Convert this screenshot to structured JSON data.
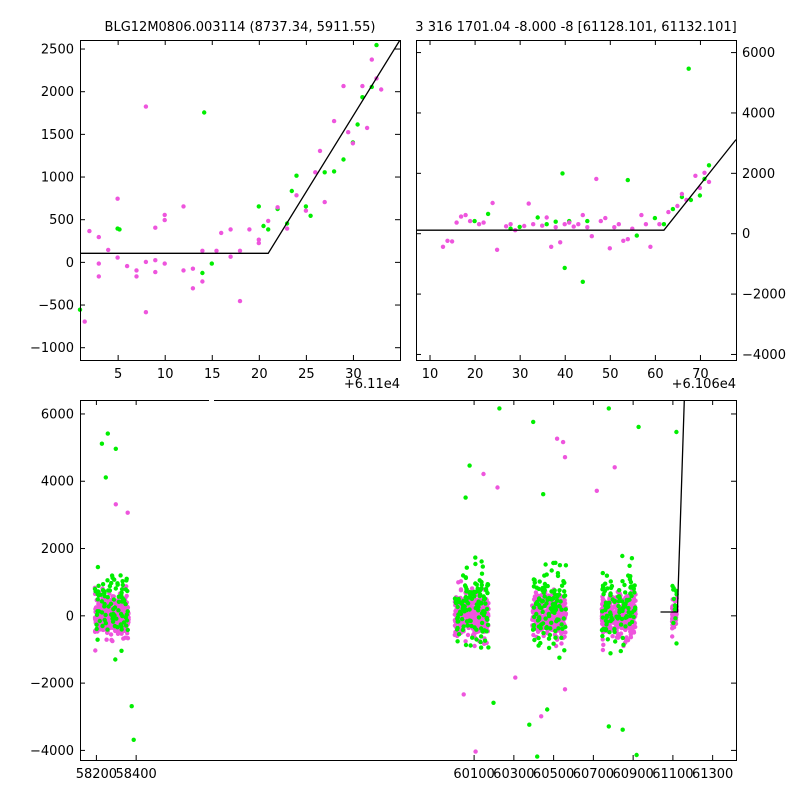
{
  "colors": {
    "green": "#00ee00",
    "magenta": "#ee55dd",
    "line": "#000000"
  },
  "chart_data": [
    {
      "id": "top-left",
      "type": "scatter",
      "title": "BLG12M0806.003114 (8737.34, 5911.55)",
      "offset_label": "+6.11e4",
      "xlim": [
        1,
        35
      ],
      "ylim": [
        -1150,
        2600
      ],
      "xticks": [
        5,
        10,
        15,
        20,
        25,
        30
      ],
      "yticks": [
        -1000,
        -500,
        0,
        500,
        1000,
        1500,
        2000,
        2500
      ],
      "model_line": [
        [
          1,
          100
        ],
        [
          21,
          100
        ],
        [
          35,
          2600
        ]
      ],
      "series": [
        {
          "name": "green",
          "points": [
            [
              1,
              -560
            ],
            [
              5,
              390
            ],
            [
              5.2,
              380
            ],
            [
              14.2,
              1750
            ],
            [
              14,
              -130
            ],
            [
              15,
              -20
            ],
            [
              20,
              650
            ],
            [
              20.5,
              420
            ],
            [
              21,
              380
            ],
            [
              22,
              620
            ],
            [
              23,
              450
            ],
            [
              23.5,
              830
            ],
            [
              24,
              1010
            ],
            [
              25,
              650
            ],
            [
              25.5,
              540
            ],
            [
              27,
              1050
            ],
            [
              28,
              1060
            ],
            [
              29,
              1200
            ],
            [
              30,
              1400
            ],
            [
              30.5,
              1610
            ],
            [
              31,
              1930
            ],
            [
              32.5,
              2540
            ],
            [
              32,
              2050
            ]
          ]
        },
        {
          "name": "magenta",
          "points": [
            [
              1.5,
              -700
            ],
            [
              2,
              360
            ],
            [
              3,
              -20
            ],
            [
              3,
              -170
            ],
            [
              3,
              290
            ],
            [
              4,
              140
            ],
            [
              5,
              50
            ],
            [
              5,
              740
            ],
            [
              6,
              -50
            ],
            [
              7,
              -100
            ],
            [
              7,
              -170
            ],
            [
              8,
              0
            ],
            [
              8,
              1820
            ],
            [
              8,
              -590
            ],
            [
              9,
              400
            ],
            [
              9,
              20
            ],
            [
              9,
              -120
            ],
            [
              10,
              -20
            ],
            [
              10,
              550
            ],
            [
              10,
              490
            ],
            [
              12,
              650
            ],
            [
              12,
              -100
            ],
            [
              13,
              -80
            ],
            [
              13,
              -310
            ],
            [
              14,
              130
            ],
            [
              14,
              -230
            ],
            [
              15.5,
              130
            ],
            [
              16,
              340
            ],
            [
              17,
              60
            ],
            [
              17,
              380
            ],
            [
              18,
              130
            ],
            [
              18,
              -460
            ],
            [
              19,
              380
            ],
            [
              20,
              220
            ],
            [
              20,
              260
            ],
            [
              21,
              480
            ],
            [
              22,
              640
            ],
            [
              23,
              390
            ],
            [
              24,
              780
            ],
            [
              25,
              600
            ],
            [
              26,
              1050
            ],
            [
              26.5,
              1300
            ],
            [
              27,
              700
            ],
            [
              28,
              1650
            ],
            [
              29,
              2060
            ],
            [
              29.5,
              1520
            ],
            [
              30,
              1390
            ],
            [
              31,
              2060
            ],
            [
              31.5,
              1570
            ],
            [
              32,
              2370
            ],
            [
              32.5,
              2150
            ],
            [
              33,
              2020
            ]
          ]
        }
      ]
    },
    {
      "id": "top-right",
      "type": "scatter",
      "title": "3 316 1701.04 -8.000 -8 [61128.101, 61132.101]",
      "offset_label": "+6.106e4",
      "xlim": [
        7,
        78
      ],
      "ylim": [
        -4200,
        6400
      ],
      "xticks": [
        10,
        20,
        30,
        40,
        50,
        60,
        70
      ],
      "yticks": [
        -4000,
        -2000,
        0,
        2000,
        4000,
        6000
      ],
      "model_line": [
        [
          7,
          100
        ],
        [
          62,
          100
        ],
        [
          78,
          3100
        ]
      ],
      "series": [
        {
          "name": "green",
          "points": [
            [
              20,
              400
            ],
            [
              23,
              640
            ],
            [
              28,
              150
            ],
            [
              30,
              210
            ],
            [
              34,
              520
            ],
            [
              36,
              300
            ],
            [
              38,
              380
            ],
            [
              39.5,
              1980
            ],
            [
              40,
              -1150
            ],
            [
              41,
              400
            ],
            [
              44,
              -1610
            ],
            [
              45,
              400
            ],
            [
              54,
              1760
            ],
            [
              56,
              -80
            ],
            [
              60,
              500
            ],
            [
              62,
              300
            ],
            [
              64,
              800
            ],
            [
              66,
              1200
            ],
            [
              67.5,
              5450
            ],
            [
              68,
              1100
            ],
            [
              70,
              1250
            ],
            [
              71,
              1800
            ],
            [
              72,
              2250
            ]
          ]
        },
        {
          "name": "magenta",
          "points": [
            [
              13,
              -450
            ],
            [
              14,
              -250
            ],
            [
              15,
              -270
            ],
            [
              16,
              350
            ],
            [
              17,
              550
            ],
            [
              18,
              600
            ],
            [
              19,
              400
            ],
            [
              21,
              300
            ],
            [
              22,
              350
            ],
            [
              24,
              1000
            ],
            [
              25,
              -550
            ],
            [
              27,
              230
            ],
            [
              28,
              300
            ],
            [
              29,
              100
            ],
            [
              31,
              240
            ],
            [
              32,
              980
            ],
            [
              33,
              300
            ],
            [
              35,
              250
            ],
            [
              36,
              520
            ],
            [
              37,
              -450
            ],
            [
              38,
              200
            ],
            [
              39,
              -300
            ],
            [
              40,
              300
            ],
            [
              41,
              350
            ],
            [
              42,
              220
            ],
            [
              43,
              300
            ],
            [
              44,
              600
            ],
            [
              45,
              200
            ],
            [
              46,
              -100
            ],
            [
              47,
              1800
            ],
            [
              48,
              400
            ],
            [
              49,
              500
            ],
            [
              50,
              -500
            ],
            [
              51,
              200
            ],
            [
              52,
              300
            ],
            [
              53,
              -250
            ],
            [
              54,
              -200
            ],
            [
              55,
              150
            ],
            [
              57,
              600
            ],
            [
              58,
              300
            ],
            [
              59,
              -450
            ],
            [
              61,
              300
            ],
            [
              63,
              700
            ],
            [
              65,
              900
            ],
            [
              66,
              1300
            ],
            [
              67,
              1100
            ],
            [
              69,
              1900
            ],
            [
              70,
              1500
            ],
            [
              71,
              2000
            ],
            [
              72,
              1700
            ]
          ]
        }
      ]
    },
    {
      "id": "bottom",
      "type": "scatter",
      "title": "",
      "xlim": [
        58120,
        61420
      ],
      "ylim": [
        -4300,
        6400
      ],
      "xticks": [
        58200,
        58400,
        60100,
        60300,
        60500,
        60700,
        60900,
        61100,
        61300
      ],
      "yticks": [
        -4000,
        -2000,
        0,
        2000,
        4000,
        6000
      ],
      "model_line": [
        [
          61040,
          100
        ],
        [
          61125,
          100
        ],
        [
          61160,
          6400
        ]
      ],
      "clusters": [
        {
          "x_center": 58280,
          "x_spread": 85,
          "magenta_n": 300,
          "green_n": 90,
          "sd": 300
        },
        {
          "x_center": 60090,
          "x_spread": 85,
          "magenta_n": 340,
          "green_n": 120,
          "sd": 320
        },
        {
          "x_center": 60480,
          "x_spread": 85,
          "magenta_n": 330,
          "green_n": 120,
          "sd": 320
        },
        {
          "x_center": 60830,
          "x_spread": 85,
          "magenta_n": 330,
          "green_n": 110,
          "sd": 310
        },
        {
          "x_center": 61110,
          "x_spread": 12,
          "magenta_n": 45,
          "green_n": 14,
          "sd": 260
        }
      ],
      "outliers": {
        "green": [
          [
            58260,
            5400
          ],
          [
            58300,
            4950
          ],
          [
            58250,
            4100
          ],
          [
            58230,
            5100
          ],
          [
            58380,
            -2700
          ],
          [
            58390,
            -3700
          ],
          [
            60080,
            4450
          ],
          [
            60230,
            6150
          ],
          [
            60400,
            5750
          ],
          [
            60420,
            -4200
          ],
          [
            60470,
            -2800
          ],
          [
            60380,
            -3250
          ],
          [
            60780,
            6150
          ],
          [
            60780,
            -3300
          ],
          [
            60850,
            -3400
          ],
          [
            60920,
            -4150
          ],
          [
            60930,
            5600
          ],
          [
            61120,
            5450
          ],
          [
            60060,
            3500
          ],
          [
            60200,
            -2600
          ],
          [
            60450,
            3600
          ]
        ],
        "magenta": [
          [
            58300,
            3300
          ],
          [
            58360,
            3050
          ],
          [
            60150,
            4200
          ],
          [
            60220,
            3800
          ],
          [
            60520,
            5250
          ],
          [
            60550,
            5150
          ],
          [
            60560,
            4700
          ],
          [
            60720,
            3700
          ],
          [
            60810,
            4400
          ],
          [
            60050,
            -2350
          ],
          [
            60110,
            -4050
          ],
          [
            60310,
            -1850
          ],
          [
            60560,
            -2200
          ],
          [
            60440,
            -3000
          ]
        ]
      }
    }
  ]
}
